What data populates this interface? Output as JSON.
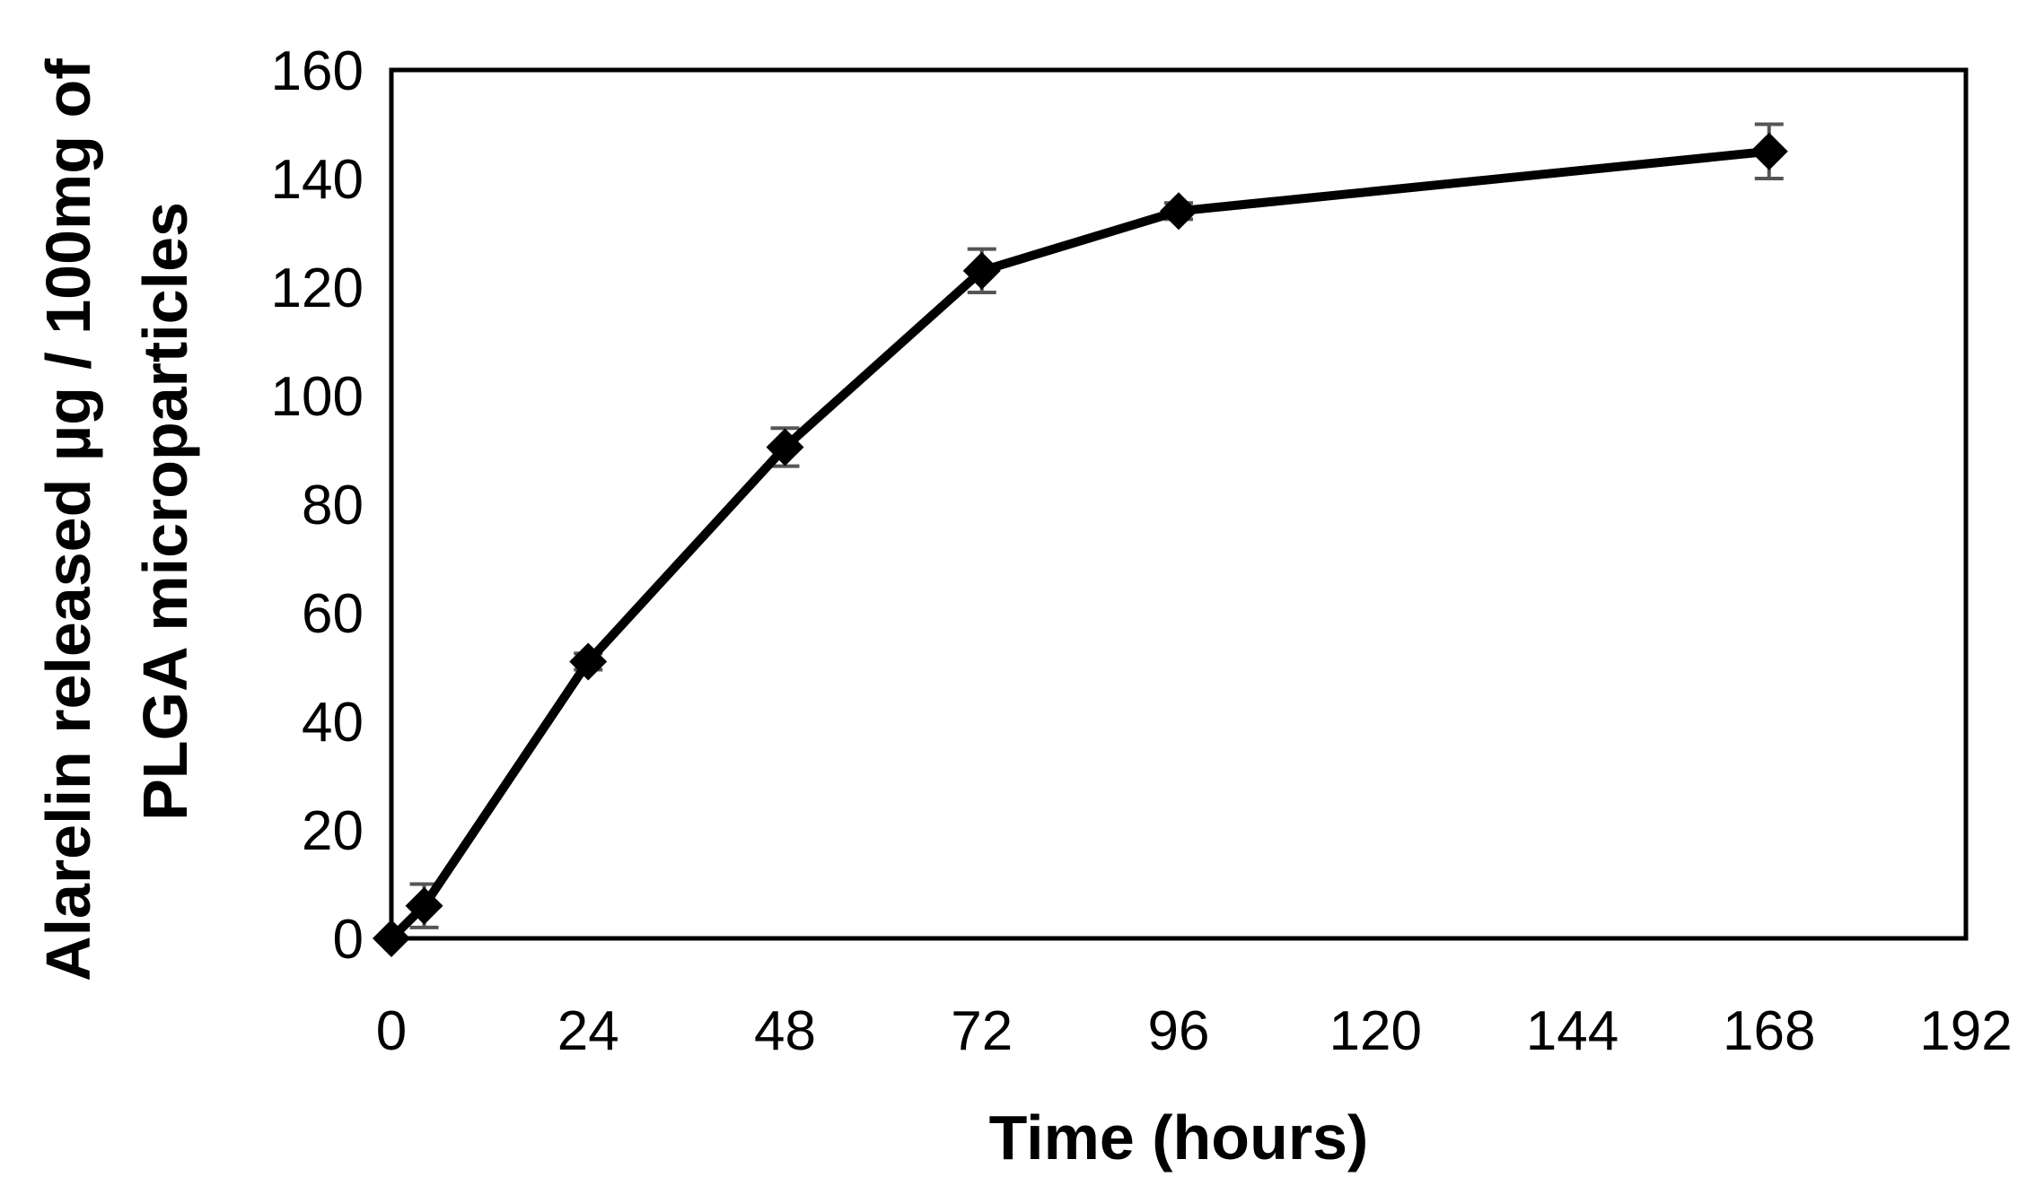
{
  "chart_data": {
    "type": "line",
    "title": "",
    "xlabel": "Time (hours)",
    "ylabel_lines": [
      "Alarelin released µg / 100mg of",
      "PLGA microparticles"
    ],
    "xlim": [
      0,
      192
    ],
    "ylim": [
      0,
      160
    ],
    "xticks": [
      0,
      24,
      48,
      72,
      96,
      120,
      144,
      168,
      192
    ],
    "yticks": [
      0,
      20,
      40,
      60,
      80,
      100,
      120,
      140,
      160
    ],
    "grid": false,
    "legend": "none",
    "line_color": "#000000",
    "errorbar_color": "#555555",
    "series": [
      {
        "marker": "diamond",
        "points": [
          {
            "x": 0,
            "y": 0,
            "err": 0
          },
          {
            "x": 4,
            "y": 6,
            "err": 4
          },
          {
            "x": 24,
            "y": 51,
            "err": 1.5
          },
          {
            "x": 48,
            "y": 90.5,
            "err": 3.5
          },
          {
            "x": 72,
            "y": 123,
            "err": 4
          },
          {
            "x": 96,
            "y": 134,
            "err": 1.5
          },
          {
            "x": 168,
            "y": 145,
            "err": 5
          }
        ]
      }
    ]
  }
}
